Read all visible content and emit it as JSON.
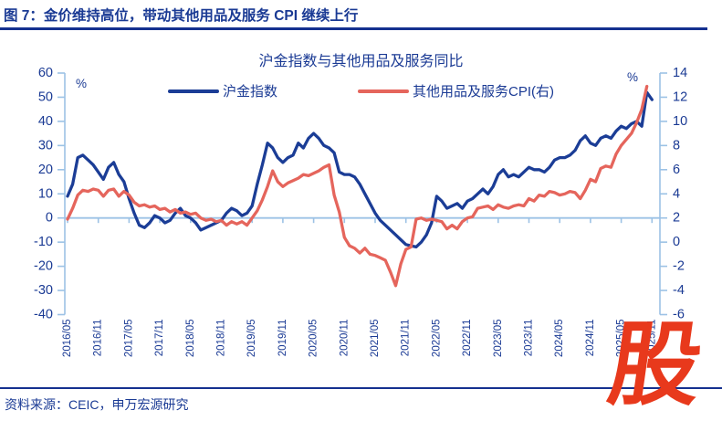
{
  "header": {
    "figure_label": "图 7：金价维持高位，带动其他用品及服务 CPI 继续上行"
  },
  "footer": {
    "source": "资料来源：CEIC，申万宏源研究"
  },
  "watermark": {
    "text": "股",
    "color": "#E8391C"
  },
  "colors": {
    "text_navy": "#1A3A94",
    "rule_navy": "#14308F",
    "axis_light_blue": "#9CC2E5",
    "gold_index_line": "#1B3D96",
    "cpi_line": "#E5655C"
  },
  "chart_data": {
    "type": "line",
    "title": "沪金指数与其他用品及服务同比",
    "grid": false,
    "legend_position": "top",
    "x_interval": "monthly",
    "x_range": [
      "2016/05",
      "2025/11"
    ],
    "x_tick_labels": [
      "2016/05",
      "2016/11",
      "2017/05",
      "2017/11",
      "2018/05",
      "2018/11",
      "2019/05",
      "2019/11",
      "2020/05",
      "2020/11",
      "2021/05",
      "2021/11",
      "2022/05",
      "2022/11",
      "2023/05",
      "2023/11",
      "2024/05",
      "2024/11",
      "2025/05",
      "2025/11"
    ],
    "left_axis": {
      "unit": "%",
      "min": -40,
      "max": 60,
      "ticks": [
        60,
        50,
        40,
        30,
        20,
        10,
        0,
        -10,
        -20,
        -30,
        -40
      ]
    },
    "right_axis": {
      "unit": "%",
      "min": -6,
      "max": 14,
      "ticks": [
        14,
        12,
        10,
        8,
        6,
        4,
        2,
        0,
        -2,
        -4,
        -6
      ]
    },
    "series": [
      {
        "name": "沪金指数",
        "axis": "left",
        "color": "#1B3D96",
        "values": [
          9,
          14,
          25,
          26,
          24,
          22,
          19,
          16,
          21,
          23,
          18,
          15,
          8,
          2,
          -3,
          -4,
          -2,
          1,
          0,
          -2,
          -1,
          2,
          4,
          1,
          0,
          -2,
          -5,
          -4,
          -3,
          -2,
          -1,
          2,
          4,
          3,
          1,
          2,
          5,
          14,
          22,
          31,
          29,
          25,
          23,
          25,
          26,
          31,
          29,
          33,
          35,
          33,
          30,
          29,
          27,
          19,
          18,
          18,
          17,
          14,
          10,
          6,
          2,
          -1,
          -3,
          -5,
          -7,
          -9,
          -11,
          -11.5,
          -12,
          -10,
          -7,
          -2,
          9,
          7,
          4,
          5,
          6,
          4,
          7,
          8,
          10,
          12,
          10,
          13,
          18,
          20,
          17,
          18,
          17,
          19,
          21,
          20,
          20,
          19,
          21,
          24,
          25,
          25,
          26,
          28,
          32,
          34,
          31,
          30,
          33,
          34,
          33,
          36,
          38,
          37,
          39,
          40,
          38,
          52,
          49
        ]
      },
      {
        "name": "其他用品及服务CPI(右)",
        "axis": "right",
        "color": "#E5655C",
        "values": [
          1.9,
          2.8,
          3.9,
          4.3,
          4.2,
          4.4,
          4.3,
          3.8,
          4.3,
          4.4,
          3.8,
          4.2,
          3.9,
          3.3,
          3.0,
          3.1,
          2.9,
          3.0,
          2.7,
          2.8,
          2.5,
          2.7,
          2.4,
          2.5,
          2.3,
          2.4,
          2.0,
          1.8,
          1.9,
          1.7,
          1.8,
          1.4,
          1.7,
          1.5,
          1.7,
          1.4,
          2.0,
          2.6,
          3.5,
          4.6,
          5.9,
          5.0,
          4.6,
          4.9,
          5.1,
          5.3,
          5.6,
          5.5,
          5.7,
          5.9,
          6.2,
          6.4,
          3.9,
          2.5,
          0.4,
          -0.3,
          -0.5,
          -0.9,
          -0.5,
          -1.0,
          -1.1,
          -1.3,
          -1.5,
          -2.5,
          -3.6,
          -1.8,
          -0.6,
          -0.4,
          1.9,
          2.0,
          1.8,
          1.9,
          1.8,
          1.7,
          1.1,
          1.4,
          1.1,
          1.7,
          2.0,
          2.1,
          2.8,
          2.9,
          3.0,
          2.7,
          3.1,
          2.9,
          2.8,
          3.0,
          3.1,
          3.0,
          3.6,
          3.4,
          3.9,
          3.8,
          4.2,
          4.1,
          3.9,
          4.0,
          4.2,
          4.1,
          3.6,
          4.3,
          5.2,
          5.0,
          6.1,
          6.3,
          6.2,
          7.3,
          8.0,
          8.5,
          9.0,
          9.9,
          11.0,
          12.9,
          null
        ]
      }
    ]
  }
}
